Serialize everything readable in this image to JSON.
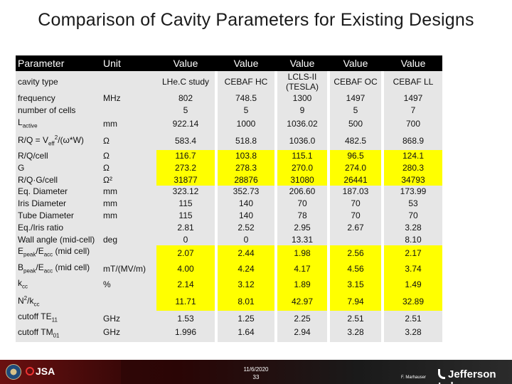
{
  "title": "Comparison of Cavity Parameters for Existing Designs",
  "table": {
    "headers": [
      "Parameter",
      "Unit",
      "Value",
      "Value",
      "Value",
      "Value",
      "Value"
    ],
    "cavity_type_label": "cavity type",
    "designs": [
      "LHe.C study",
      "CEBAF HC",
      "LCLS-II (TESLA)",
      "CEBAF OC",
      "CEBAF LL"
    ],
    "rows": [
      {
        "p": "frequency",
        "u": "MHz",
        "v": [
          "802",
          "748.5",
          "1300",
          "1497",
          "1497"
        ],
        "hl": false
      },
      {
        "p": "number of cells",
        "u": "",
        "v": [
          "5",
          "5",
          "9",
          "5",
          "7"
        ],
        "hl": false
      },
      {
        "p": "L",
        "sub": "active",
        "u": "mm",
        "v": [
          "922.14",
          "1000",
          "1036.02",
          "500",
          "700"
        ],
        "hl": false
      },
      {
        "p": "R/Q = V",
        "sub": "eff",
        "sup": "2",
        "post": "/(ω*W)",
        "u": "Ω",
        "v": [
          "583.4",
          "518.8",
          "1036.0",
          "482.5",
          "868.9"
        ],
        "hl": false
      },
      {
        "p": "R/Q/cell",
        "u": "Ω",
        "v": [
          "116.7",
          "103.8",
          "115.1",
          "96.5",
          "124.1"
        ],
        "hl": true
      },
      {
        "p": "G",
        "u": "Ω",
        "v": [
          "273.2",
          "278.3",
          "270.0",
          "274.0",
          "280.3"
        ],
        "hl": true
      },
      {
        "p": "R/Q·G/cell",
        "u": "Ω²",
        "v": [
          "31877",
          "28876",
          "31080",
          "26441",
          "34793"
        ],
        "hl": true
      },
      {
        "p": "Eq. Diameter",
        "u": "mm",
        "v": [
          "323.12",
          "352.73",
          "206.60",
          "187.03",
          "173.99"
        ],
        "hl": false
      },
      {
        "p": "Iris Diameter",
        "u": "mm",
        "v": [
          "115",
          "140",
          "70",
          "70",
          "53"
        ],
        "hl": false
      },
      {
        "p": "Tube Diameter",
        "u": "mm",
        "v": [
          "115",
          "140",
          "78",
          "70",
          "70"
        ],
        "hl": false
      },
      {
        "p": "Eq./Iris ratio",
        "u": "",
        "v": [
          "2.81",
          "2.52",
          "2.95",
          "2.67",
          "3.28"
        ],
        "hl": false
      },
      {
        "p": "Wall angle (mid-cell)",
        "u": "deg",
        "v": [
          "0",
          "0",
          "13.31",
          "",
          "8.10"
        ],
        "hl": false
      },
      {
        "p": "E",
        "sub": "peak",
        "post": "/E",
        "sub2": "acc",
        "post2": " (mid cell)",
        "u": "",
        "v": [
          "2.07",
          "2.44",
          "1.98",
          "2.56",
          "2.17"
        ],
        "hl": true
      },
      {
        "p": "B",
        "sub": "peak",
        "post": "/E",
        "sub2": "acc",
        "post2": " (mid cell)",
        "u": "mT/(MV/m)",
        "v": [
          "4.00",
          "4.24",
          "4.17",
          "4.56",
          "3.74"
        ],
        "hl": true
      },
      {
        "p": "k",
        "sub": "cc",
        "u": "%",
        "v": [
          "2.14",
          "3.12",
          "1.89",
          "3.15",
          "1.49"
        ],
        "hl": true
      },
      {
        "p": "N",
        "sup": "2",
        "post": "/k",
        "sub2": "cc",
        "u": "",
        "v": [
          "11.71",
          "8.01",
          "42.97",
          "7.94",
          "32.89"
        ],
        "hl": true
      },
      {
        "p": "cutoff TE",
        "sub": "11",
        "u": "GHz",
        "v": [
          "1.53",
          "1.25",
          "2.25",
          "2.51",
          "2.51"
        ],
        "hl": false
      },
      {
        "p": "cutoff TM",
        "sub": "01",
        "u": "GHz",
        "v": [
          "1.996",
          "1.64",
          "2.94",
          "3.28",
          "3.28"
        ],
        "hl": false
      }
    ]
  },
  "footer": {
    "date": "11/6/2020",
    "page": "33",
    "author": "F. Marhauser",
    "org": "Jefferson Lab",
    "jsa": "JSA"
  }
}
